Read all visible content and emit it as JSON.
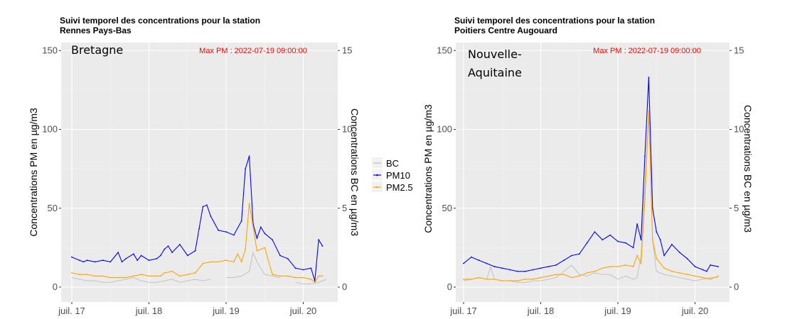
{
  "chart_data": [
    {
      "type": "line",
      "title": "Suivi temporel des concentrations pour la station",
      "subtitle": "Rennes Pays-Bas",
      "region": "Bretagne",
      "annotation": "Max PM : 2022-07-19 09:00:00",
      "ylabel_left": "Concentrations PM en µg/m3",
      "ylabel_right": "Concentrations BC en µg/m3",
      "x_ticks": [
        "juil. 17",
        "juil. 18",
        "juil. 19",
        "juil. 20"
      ],
      "x_range_days": [
        17.0,
        20.45
      ],
      "y_left_ticks": [
        "0",
        "50",
        "100",
        "150"
      ],
      "y_left_range": [
        0,
        150
      ],
      "y_right_ticks": [
        "0",
        "5",
        "10",
        "15"
      ],
      "y_right_range": [
        0,
        15
      ],
      "grid": true,
      "legend_position": "right",
      "series": [
        {
          "name": "BC",
          "color": "#bebebe",
          "axis": "right",
          "x": [
            17.0,
            17.1,
            17.2,
            17.3,
            17.4,
            17.5,
            17.6,
            17.7,
            17.8,
            17.9,
            18.0,
            18.1,
            18.2,
            18.3,
            18.4,
            18.5,
            18.6,
            18.7,
            18.8,
            18.9,
            19.0,
            19.1,
            19.2,
            19.3,
            19.35,
            19.4,
            19.5,
            19.6,
            19.7,
            19.8,
            19.9,
            20.0,
            20.1,
            20.2,
            20.3
          ],
          "values": [
            0.6,
            0.5,
            0.4,
            0.4,
            0.3,
            0.3,
            0.4,
            0.5,
            0.6,
            0.4,
            0.3,
            0.3,
            0.4,
            0.5,
            0.3,
            0.4,
            0.5,
            0.4,
            0.5,
            null,
            0.6,
            0.6,
            0.7,
            1.0,
            2.2,
            1.6,
            0.8,
            0.7,
            0.6,
            null,
            0.3,
            0.2,
            0.2,
            0.3,
            0.5
          ]
        },
        {
          "name": "PM10",
          "color": "#0000ff",
          "axis": "left",
          "x": [
            17.0,
            17.1,
            17.15,
            17.2,
            17.3,
            17.4,
            17.5,
            17.6,
            17.65,
            17.7,
            17.8,
            17.85,
            17.9,
            18.0,
            18.1,
            18.15,
            18.2,
            18.25,
            18.3,
            18.4,
            18.5,
            18.6,
            18.65,
            18.7,
            18.75,
            18.8,
            18.9,
            19.0,
            19.1,
            19.2,
            19.25,
            19.3,
            19.35,
            19.4,
            19.45,
            19.5,
            19.6,
            19.7,
            19.8,
            19.9,
            20.0,
            20.1,
            20.15,
            20.2,
            20.25
          ],
          "values": [
            19,
            17,
            16,
            17,
            16,
            17,
            16,
            22,
            16,
            18,
            21,
            17,
            20,
            17,
            18,
            20,
            24,
            26,
            22,
            27,
            20,
            23,
            37,
            51,
            52,
            45,
            36,
            35,
            33,
            42,
            75,
            83,
            40,
            31,
            38,
            34,
            30,
            20,
            18,
            12,
            11,
            12,
            4,
            30,
            26
          ]
        },
        {
          "name": "PM2.5",
          "color": "#ffa500",
          "axis": "left",
          "x": [
            17.0,
            17.1,
            17.2,
            17.3,
            17.4,
            17.5,
            17.6,
            17.7,
            17.8,
            17.9,
            18.0,
            18.1,
            18.15,
            18.2,
            18.3,
            18.4,
            18.5,
            18.6,
            18.7,
            18.8,
            18.9,
            19.0,
            19.1,
            19.15,
            19.2,
            19.25,
            19.3,
            19.35,
            19.4,
            19.5,
            19.6,
            19.7,
            19.8,
            19.9,
            20.0,
            20.1,
            20.15,
            20.2,
            20.25
          ],
          "values": [
            9,
            8,
            8,
            7,
            7,
            6,
            6,
            6,
            7,
            8,
            7,
            7,
            7,
            9,
            10,
            7,
            8,
            9,
            15,
            16,
            16,
            17,
            16,
            21,
            16,
            24,
            53,
            38,
            23,
            25,
            8,
            7,
            7,
            6,
            6,
            5,
            3,
            7,
            7
          ]
        }
      ]
    },
    {
      "type": "line",
      "title": "Suivi temporel des concentrations pour la station",
      "subtitle": "Poitiers Centre  Augouard",
      "region_lines": [
        "Nouvelle-",
        "Aquitaine"
      ],
      "annotation": "Max PM : 2022-07-19 09:00:00",
      "ylabel_left": "Concentrations PM en µg/m3",
      "ylabel_right": "Concentrations BC en µg/m3",
      "x_ticks": [
        "juil. 17",
        "juil. 18",
        "juil. 19",
        "juil. 20"
      ],
      "x_range_days": [
        17.0,
        20.45
      ],
      "y_left_ticks": [
        "0",
        "50",
        "100",
        "150"
      ],
      "y_left_range": [
        0,
        150
      ],
      "y_right_ticks": [
        "0",
        "5",
        "10",
        "15"
      ],
      "y_right_range": [
        0,
        15
      ],
      "grid": true,
      "series": [
        {
          "name": "BC",
          "color": "#bebebe",
          "axis": "right",
          "x": [
            17.0,
            17.1,
            17.2,
            17.3,
            17.35,
            17.4,
            17.5,
            17.6,
            17.7,
            17.8,
            17.9,
            18.0,
            18.1,
            18.2,
            18.3,
            18.4,
            18.5,
            18.6,
            18.7,
            18.8,
            18.9,
            19.0,
            19.1,
            19.2,
            19.25,
            19.3,
            19.35,
            19.4,
            19.45,
            19.5,
            19.6,
            19.7,
            19.8,
            19.9,
            20.0,
            20.1,
            20.2,
            20.3
          ],
          "values": [
            0.4,
            0.5,
            0.6,
            0.5,
            1.3,
            0.5,
            0.4,
            0.4,
            0.3,
            0.3,
            0.4,
            0.4,
            0.5,
            0.6,
            1.0,
            1.4,
            0.8,
            0.7,
            0.9,
            0.8,
            0.8,
            0.5,
            0.7,
            0.5,
            0.6,
            2.0,
            6.5,
            11.0,
            3.0,
            1.0,
            0.8,
            0.7,
            0.6,
            0.5,
            0.4,
            0.5,
            0.6,
            0.6
          ]
        },
        {
          "name": "PM10",
          "color": "#0000ff",
          "axis": "left",
          "x": [
            17.0,
            17.1,
            17.2,
            17.3,
            17.4,
            17.5,
            17.6,
            17.7,
            17.8,
            17.9,
            18.0,
            18.1,
            18.2,
            18.3,
            18.4,
            18.5,
            18.6,
            18.7,
            18.8,
            18.9,
            19.0,
            19.1,
            19.2,
            19.25,
            19.3,
            19.35,
            19.4,
            19.45,
            19.5,
            19.55,
            19.6,
            19.7,
            19.8,
            19.9,
            20.0,
            20.1,
            20.15,
            20.2,
            20.3
          ],
          "values": [
            15,
            19,
            17,
            15,
            13,
            12,
            11,
            10,
            10,
            11,
            12,
            13,
            14,
            17,
            20,
            21,
            28,
            35,
            30,
            33,
            29,
            28,
            25,
            40,
            30,
            83,
            133,
            50,
            35,
            30,
            20,
            27,
            22,
            18,
            13,
            11,
            10,
            14,
            13
          ]
        },
        {
          "name": "PM2.5",
          "color": "#ffa500",
          "axis": "left",
          "x": [
            17.0,
            17.1,
            17.2,
            17.3,
            17.4,
            17.5,
            17.6,
            17.7,
            17.8,
            17.9,
            18.0,
            18.1,
            18.2,
            18.3,
            18.4,
            18.5,
            18.6,
            18.7,
            18.8,
            18.9,
            19.0,
            19.1,
            19.2,
            19.25,
            19.3,
            19.35,
            19.4,
            19.45,
            19.5,
            19.6,
            19.7,
            19.8,
            19.9,
            20.0,
            20.1,
            20.2,
            20.3
          ],
          "values": [
            5,
            5,
            6,
            5,
            5,
            4,
            4,
            4,
            5,
            5,
            6,
            7,
            8,
            8,
            6,
            7,
            9,
            10,
            12,
            13,
            13,
            14,
            13,
            20,
            15,
            56,
            112,
            30,
            18,
            12,
            10,
            9,
            8,
            7,
            6,
            5,
            7
          ]
        }
      ]
    }
  ]
}
